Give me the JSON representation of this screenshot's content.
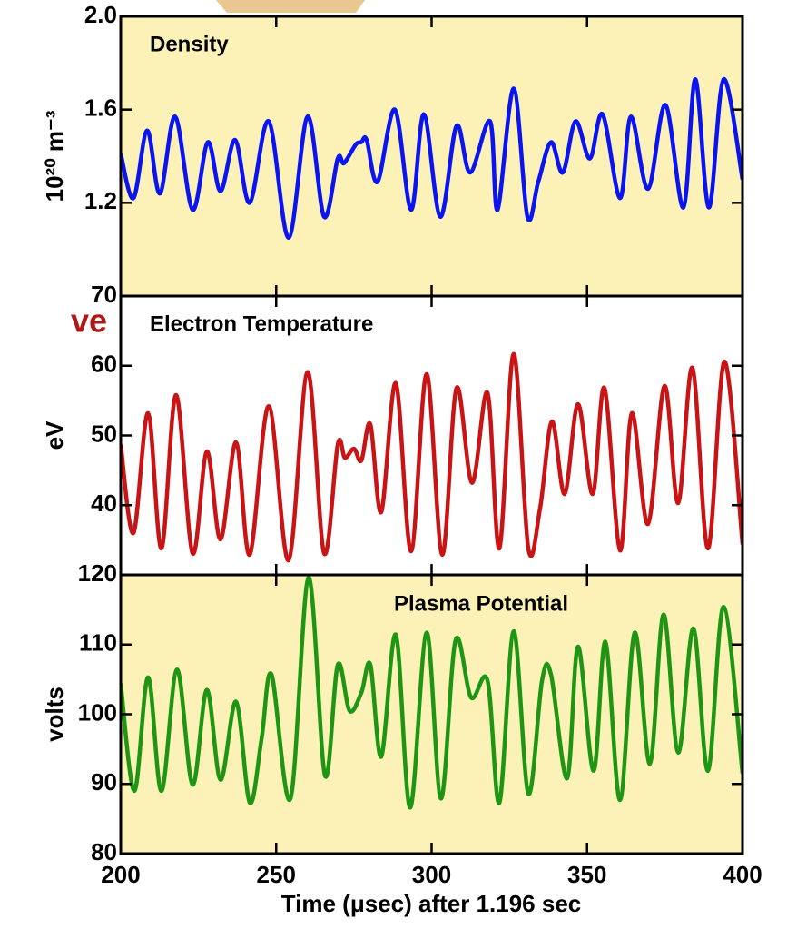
{
  "fragment": "ve",
  "chart_data": [
    {
      "type": "line",
      "title": "Density",
      "ylabel": "10²⁰ m⁻³",
      "background": "#fcf2b8",
      "color": "#0a14f0",
      "ylim": [
        0.8,
        2.0
      ],
      "yticks": [
        1.2,
        1.6,
        {
          "value": 2.0,
          "label": "2.0"
        }
      ],
      "x": [
        200,
        204.1,
        208.5,
        212.6,
        217.5,
        223.1,
        228,
        232.1,
        236.8,
        241.5,
        247.6,
        254,
        260.1,
        265.4,
        269.8,
        271.8,
        275.6,
        277.4,
        279.1,
        282.6,
        288.2,
        293.4,
        297.5,
        302.8,
        308,
        312.4,
        318.8,
        321.2,
        326.4,
        330.8,
        334.3,
        338.4,
        342.2,
        346.3,
        350.9,
        355,
        360.6,
        364.1,
        369.6,
        375.2,
        381,
        384.8,
        389.2,
        393.9,
        400
      ],
      "values": [
        1.41,
        1.22,
        1.51,
        1.24,
        1.57,
        1.17,
        1.46,
        1.25,
        1.47,
        1.2,
        1.55,
        1.05,
        1.57,
        1.14,
        1.39,
        1.37,
        1.45,
        1.46,
        1.47,
        1.29,
        1.6,
        1.17,
        1.58,
        1.14,
        1.53,
        1.33,
        1.55,
        1.17,
        1.69,
        1.14,
        1.29,
        1.46,
        1.33,
        1.55,
        1.39,
        1.58,
        1.22,
        1.57,
        1.26,
        1.62,
        1.18,
        1.73,
        1.18,
        1.73,
        1.3
      ]
    },
    {
      "type": "line",
      "title": "Electron Temperature",
      "ylabel": "eV",
      "background": "#ffffff",
      "color": "#c81414",
      "ylim": [
        30,
        70
      ],
      "yticks": [
        40,
        50,
        60,
        70
      ],
      "x": [
        200,
        204.1,
        208.8,
        213.1,
        217.8,
        223.1,
        227.7,
        232.1,
        237.1,
        241.5,
        247.6,
        254,
        260.1,
        265.4,
        269.8,
        272.1,
        275,
        277.4,
        280.3,
        283.8,
        288.5,
        293.4,
        298.4,
        303.4,
        308,
        313,
        318,
        321.8,
        326.4,
        331.1,
        334.9,
        338.7,
        342.8,
        347.1,
        351.8,
        355.6,
        360.6,
        364.4,
        369.6,
        374.9,
        379.3,
        383.9,
        388.9,
        394.2,
        400
      ],
      "values": [
        48.7,
        36,
        53.2,
        33.8,
        55.8,
        33.1,
        47.7,
        35.1,
        49,
        32.9,
        54.2,
        32.1,
        59.1,
        33.1,
        48.7,
        46.8,
        48.1,
        46.4,
        51.6,
        39,
        57.5,
        33.4,
        58.8,
        32.9,
        56.8,
        43.2,
        56.1,
        33.8,
        61.7,
        33.8,
        39.6,
        52,
        41.6,
        54.5,
        41.6,
        56.8,
        33.5,
        53.2,
        37.3,
        57.1,
        40.3,
        59.7,
        33.8,
        60.6,
        34.4
      ]
    },
    {
      "type": "line",
      "title": "Plasma Potential",
      "ylabel": "volts",
      "background": "#fcf2b8",
      "color": "#1e9614",
      "ylim": [
        80,
        120
      ],
      "yticks": [
        80,
        90,
        100,
        110,
        120
      ],
      "xlim": [
        200,
        400
      ],
      "xticks": [
        200,
        250,
        300,
        350,
        400
      ],
      "xlabel": "Time (μsec) after 1.196 sec",
      "x": [
        200,
        204.4,
        208.8,
        213.1,
        218.1,
        223.1,
        227.7,
        232.1,
        237.1,
        241.5,
        245.3,
        248.5,
        254.6,
        260.4,
        265.7,
        269.8,
        273.6,
        277.4,
        280.3,
        283.8,
        288.5,
        293.1,
        298.4,
        303,
        307.7,
        312.7,
        318,
        321.8,
        326.4,
        331.1,
        335.5,
        338.4,
        343.6,
        347.1,
        352.1,
        355.9,
        360.6,
        365.3,
        370.2,
        374.6,
        379.3,
        384.2,
        388.9,
        393.9,
        400
      ],
      "values": [
        104.4,
        89,
        105.3,
        89,
        106.4,
        89.9,
        103.5,
        90.6,
        101.8,
        87.3,
        96.5,
        105.7,
        87.9,
        119.6,
        91.2,
        107.1,
        100.5,
        103.1,
        107.1,
        93.9,
        111.4,
        86.6,
        111.7,
        87.9,
        110.6,
        102.4,
        104.8,
        87.3,
        111.9,
        88.6,
        104.8,
        105.7,
        90.8,
        109.7,
        91.9,
        110.4,
        87.7,
        111.7,
        92.9,
        114.3,
        94.5,
        112.3,
        91.9,
        115.4,
        91.5
      ]
    }
  ]
}
